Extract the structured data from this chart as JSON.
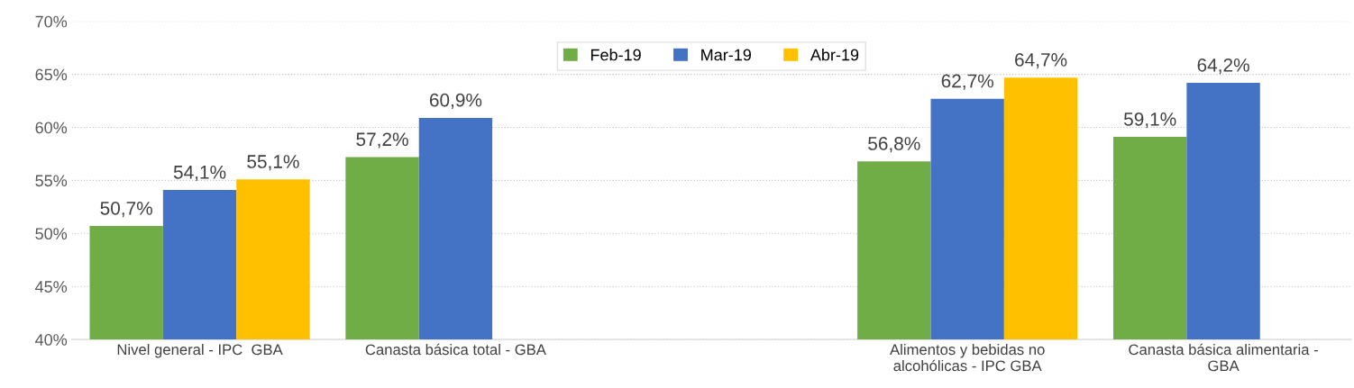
{
  "chart_data": {
    "type": "bar",
    "categories": [
      "Nivel general - IPC  GBA",
      "Canasta básica total - GBA",
      null,
      "Alimentos y bebidas no\nalcohólicas - IPC GBA",
      "Canasta básica alimentaria -\nGBA"
    ],
    "series": [
      {
        "name": "Feb-19",
        "color": "#70ad47",
        "values": [
          50.7,
          57.2,
          null,
          56.8,
          59.1
        ],
        "value_labels": [
          "50,7%",
          "57,2%",
          null,
          "56,8%",
          "59,1%"
        ]
      },
      {
        "name": "Mar-19",
        "color": "#4472c4",
        "values": [
          54.1,
          60.9,
          null,
          62.7,
          64.2
        ],
        "value_labels": [
          "54,1%",
          "60,9%",
          null,
          "62,7%",
          "64,2%"
        ]
      },
      {
        "name": "Abr-19",
        "color": "#ffc000",
        "values": [
          55.1,
          null,
          null,
          64.7,
          null
        ],
        "value_labels": [
          "55,1%",
          null,
          null,
          "64,7%",
          null
        ]
      }
    ],
    "ylim": [
      40,
      70
    ],
    "yticks": [
      {
        "value": 40,
        "label": "40%"
      },
      {
        "value": 45,
        "label": "45%"
      },
      {
        "value": 50,
        "label": "50%"
      },
      {
        "value": 55,
        "label": "55%"
      },
      {
        "value": 60,
        "label": "60%"
      },
      {
        "value": 65,
        "label": "65%"
      },
      {
        "value": 70,
        "label": "70%"
      }
    ],
    "grid": "y",
    "legend": "top"
  }
}
